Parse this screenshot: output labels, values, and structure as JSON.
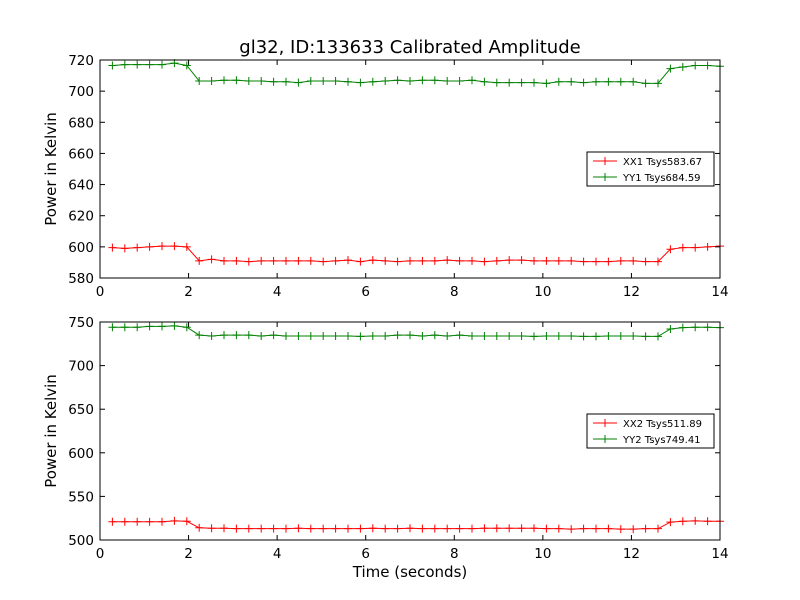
{
  "chart_data": [
    {
      "type": "line",
      "title": "gl32, ID:133633 Calibrated Amplitude",
      "xlabel": "",
      "ylabel": "Power in Kelvin",
      "xlim": [
        0,
        14
      ],
      "ylim": [
        580,
        720
      ],
      "xticks": [
        0,
        2,
        4,
        6,
        8,
        10,
        12,
        14
      ],
      "yticks": [
        580,
        600,
        620,
        640,
        660,
        680,
        700,
        720
      ],
      "legend_position": "right",
      "x": [
        0.28,
        0.56,
        0.84,
        1.12,
        1.4,
        1.68,
        1.96,
        2.24,
        2.52,
        2.8,
        3.08,
        3.36,
        3.64,
        3.92,
        4.2,
        4.48,
        4.76,
        5.04,
        5.32,
        5.6,
        5.88,
        6.16,
        6.44,
        6.72,
        7.0,
        7.28,
        7.56,
        7.84,
        8.12,
        8.4,
        8.68,
        8.96,
        9.24,
        9.52,
        9.8,
        10.08,
        10.36,
        10.64,
        10.92,
        11.2,
        11.48,
        11.76,
        12.04,
        12.32,
        12.6,
        12.88,
        13.16,
        13.44,
        13.72,
        14.0
      ],
      "series": [
        {
          "name": "XX1 Tsys583.67",
          "color": "#ff0000",
          "values": [
            599.5,
            599,
            599.5,
            600,
            600.5,
            600.5,
            600,
            591,
            592,
            591,
            591,
            590.5,
            591,
            591,
            591,
            591,
            591,
            590.5,
            591,
            591.5,
            590.5,
            591.5,
            591,
            590.5,
            591,
            591,
            591,
            591.5,
            591,
            591,
            590.5,
            591,
            591.5,
            591.5,
            591,
            591,
            591,
            591,
            590.5,
            590.5,
            590.5,
            591,
            591,
            590.5,
            590.5,
            598.5,
            599.5,
            599.5,
            600,
            600.5
          ]
        },
        {
          "name": "YY1 Tsys684.59",
          "color": "#008000",
          "values": [
            716.5,
            717,
            717,
            717,
            717,
            718,
            716.5,
            706.5,
            706.5,
            707,
            707,
            706.5,
            706.5,
            706,
            706,
            705.5,
            706.5,
            706.5,
            706.5,
            706,
            705.5,
            706,
            706.5,
            707,
            706.5,
            707,
            707,
            706.5,
            706.5,
            707,
            706,
            705.5,
            705.5,
            705.5,
            705.5,
            705,
            706,
            706,
            705.5,
            706,
            706,
            706,
            706,
            705,
            705,
            714.5,
            715.5,
            716.5,
            716.5,
            716
          ]
        }
      ]
    },
    {
      "type": "line",
      "title": "",
      "xlabel": "Time (seconds)",
      "ylabel": "Power in Kelvin",
      "xlim": [
        0,
        14
      ],
      "ylim": [
        500,
        750
      ],
      "xticks": [
        0,
        2,
        4,
        6,
        8,
        10,
        12,
        14
      ],
      "yticks": [
        500,
        550,
        600,
        650,
        700,
        750
      ],
      "legend_position": "right",
      "x": [
        0.28,
        0.56,
        0.84,
        1.12,
        1.4,
        1.68,
        1.96,
        2.24,
        2.52,
        2.8,
        3.08,
        3.36,
        3.64,
        3.92,
        4.2,
        4.48,
        4.76,
        5.04,
        5.32,
        5.6,
        5.88,
        6.16,
        6.44,
        6.72,
        7.0,
        7.28,
        7.56,
        7.84,
        8.12,
        8.4,
        8.68,
        8.96,
        9.24,
        9.52,
        9.8,
        10.08,
        10.36,
        10.64,
        10.92,
        11.2,
        11.48,
        11.76,
        12.04,
        12.32,
        12.6,
        12.88,
        13.16,
        13.44,
        13.72,
        14.0
      ],
      "series": [
        {
          "name": "XX2 Tsys511.89",
          "color": "#ff0000",
          "values": [
            521,
            521,
            521,
            521,
            521,
            522,
            521.5,
            514,
            513.5,
            513.5,
            513,
            513,
            513,
            513,
            513,
            513.5,
            513,
            513,
            513,
            513,
            513,
            513.5,
            513,
            513,
            513.5,
            513,
            513,
            513,
            513,
            513,
            513.5,
            513.5,
            513.5,
            513.5,
            513.5,
            513,
            513,
            512.5,
            513,
            513,
            513,
            512.5,
            512.5,
            513,
            513,
            520.5,
            521.5,
            522,
            521.5,
            521.5
          ]
        },
        {
          "name": "YY2 Tsys749.41",
          "color": "#008000",
          "values": [
            744,
            744,
            744,
            745,
            745,
            745.5,
            744,
            735,
            734,
            735,
            735,
            735,
            734,
            735,
            734,
            734,
            734,
            734,
            734,
            734,
            733.5,
            734,
            734,
            735,
            735,
            734,
            735,
            734,
            735,
            734,
            734,
            734,
            734,
            734,
            733.5,
            734,
            734,
            734,
            733.5,
            733.5,
            734,
            734,
            734,
            733.5,
            733.5,
            742,
            743.5,
            744,
            744,
            743.5
          ]
        }
      ]
    }
  ]
}
